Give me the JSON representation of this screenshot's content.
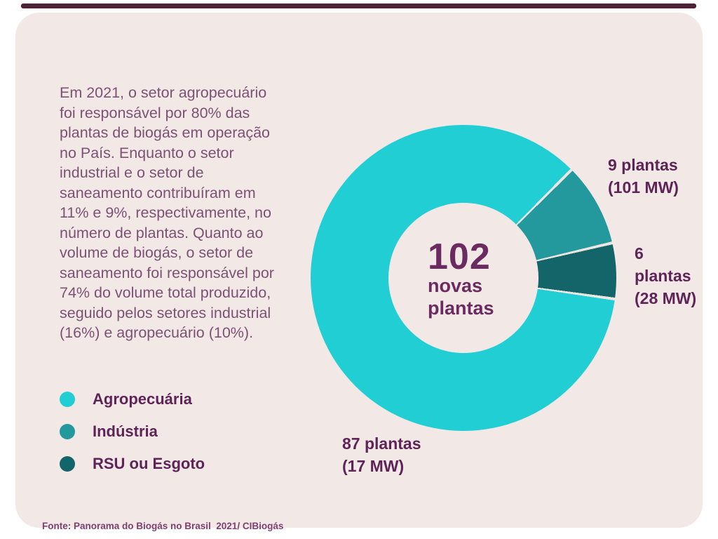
{
  "accent_bar": {
    "color": "#4f2137"
  },
  "card": {
    "background": "#f2e9e7"
  },
  "intro": {
    "text": "Em 2021, o setor agropecuário\nfoi responsável por 80% das\nplantas de biogás em operação\nno País. Enquanto o setor\nindustrial e o setor de\nsaneamento contribuíram em\n11% e 9%, respectivamente, no\nnúmero de plantas. Quanto ao\nvolume de biogás, o setor de\nsaneamento foi responsável por\n74% do volume total produzido,\nseguido pelos setores industrial\n(16%) e agropecuário (10%)."
  },
  "chart_data": {
    "type": "pie",
    "donut": true,
    "total": 102,
    "center_label": {
      "value": "102",
      "line1": "novas",
      "line2": "plantas"
    },
    "start_angle_deg": 45,
    "segment_draw_order": [
      1,
      2,
      0
    ],
    "gap_deg": 1.1,
    "gap_color": "#ece6e3",
    "legend_position": "bottom-left",
    "segments": [
      {
        "label": "Agropecuária",
        "plants": 87,
        "mw": 17,
        "color": "#21ced4",
        "annotation": [
          "87 plantas",
          "(17 MW)"
        ]
      },
      {
        "label": "Indústria",
        "plants": 9,
        "mw": 101,
        "color": "#23999d",
        "annotation": [
          "9 plantas",
          "(101 MW)"
        ]
      },
      {
        "label": "RSU ou Esgoto",
        "plants": 6,
        "mw": 28,
        "color": "#14656a",
        "annotation": [
          "6 plantas",
          "(28 MW)"
        ]
      }
    ]
  },
  "footer": {
    "text": "Fonte: Panorama do Biogás no Brasil  2021/ CIBiogás"
  }
}
